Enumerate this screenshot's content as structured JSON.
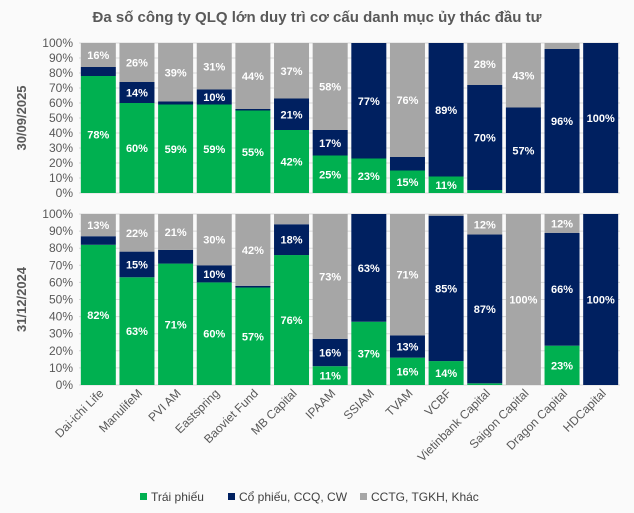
{
  "chart_data": {
    "type": "bar",
    "stacked": "percent",
    "title": "Đa số công ty QLQ lớn duy trì cơ cấu danh mục ủy thác đầu tư",
    "categories": [
      "Dai-ichi Life",
      "ManulifeM",
      "PVI AM",
      "Eastspring",
      "Baoviet Fund",
      "MB Capital",
      "IPAAM",
      "SSIAM",
      "TVAM",
      "VCBF",
      "Vietinbank Capital",
      "Saigon Capital",
      "Dragon Capital",
      "HDCapital"
    ],
    "series_names": [
      "Trái phiếu",
      "Cổ phiếu, CCQ, CW",
      "CCTG, TGKH, Khác"
    ],
    "colors": [
      "#00b050",
      "#002060",
      "#a6a6a6"
    ],
    "yticks": [
      "0%",
      "10%",
      "20%",
      "30%",
      "40%",
      "50%",
      "60%",
      "70%",
      "80%",
      "90%",
      "100%"
    ],
    "ylim": [
      0,
      100
    ],
    "legend_position": "bottom",
    "panels": [
      {
        "label": "30/09/2025",
        "series": [
          {
            "name": "Trái phiếu",
            "values": [
              78,
              60,
              59,
              59,
              55,
              42,
              25,
              23,
              15,
              11,
              2,
              0,
              0,
              0
            ]
          },
          {
            "name": "Cổ phiếu, CCQ, CW",
            "values": [
              6,
              14,
              2,
              10,
              1,
              21,
              17,
              77,
              9,
              89,
              70,
              57,
              96,
              100
            ]
          },
          {
            "name": "CCTG, TGKH, Khác",
            "values": [
              16,
              26,
              39,
              31,
              44,
              37,
              58,
              0,
              76,
              0,
              28,
              43,
              4,
              0
            ]
          }
        ]
      },
      {
        "label": "31/12/2024",
        "series": [
          {
            "name": "Trái phiếu",
            "values": [
              82,
              63,
              71,
              60,
              57,
              76,
              11,
              37,
              16,
              14,
              1,
              0,
              23,
              0
            ]
          },
          {
            "name": "Cổ phiếu, CCQ, CW",
            "values": [
              5,
              15,
              8,
              10,
              1,
              18,
              16,
              63,
              13,
              85,
              87,
              0,
              66,
              100
            ]
          },
          {
            "name": "CCTG, TGKH, Khác",
            "values": [
              13,
              22,
              21,
              30,
              42,
              6,
              73,
              0,
              71,
              1,
              12,
              100,
              12,
              0
            ]
          }
        ]
      }
    ]
  }
}
